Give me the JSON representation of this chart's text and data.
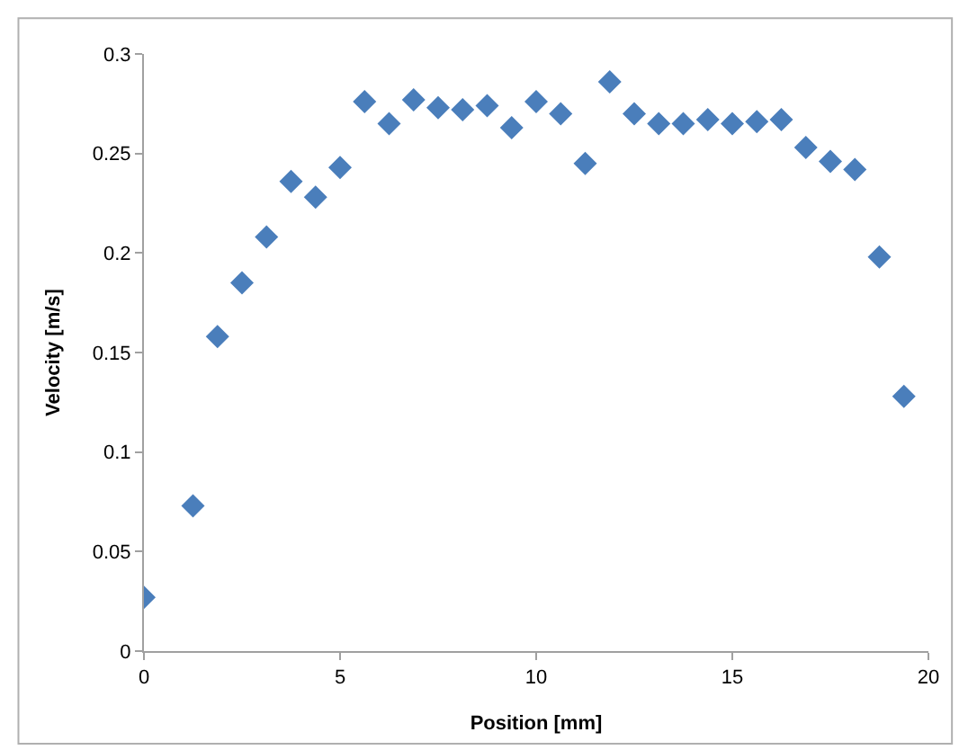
{
  "chart_data": {
    "type": "scatter",
    "xlabel": "Position [mm]",
    "ylabel": "Velocity [m/s]",
    "x": [
      0,
      1.25,
      1.875,
      2.5,
      3.125,
      3.75,
      4.375,
      5,
      5.625,
      6.25,
      6.875,
      7.5,
      8.125,
      8.75,
      9.375,
      10,
      10.625,
      11.25,
      11.875,
      12.5,
      13.125,
      13.75,
      14.375,
      15,
      15.625,
      16.25,
      16.875,
      17.5,
      18.125,
      18.75,
      19.375
    ],
    "series": [
      {
        "color": "#4a7ebb",
        "values": [
          0.027,
          0.073,
          0.158,
          0.185,
          0.208,
          0.236,
          0.228,
          0.243,
          0.276,
          0.265,
          0.277,
          0.273,
          0.272,
          0.274,
          0.263,
          0.276,
          0.27,
          0.245,
          0.286,
          0.27,
          0.265,
          0.265,
          0.267,
          0.265,
          0.266,
          0.267,
          0.253,
          0.246,
          0.242,
          0.198,
          0.128
        ]
      }
    ],
    "xlim": [
      0,
      20
    ],
    "xticks": [
      0,
      5,
      10,
      15,
      20
    ],
    "ylim": [
      0,
      0.3
    ],
    "yticks": [
      0,
      0.05,
      0.1,
      0.15,
      0.2,
      0.25,
      0.3
    ],
    "marker": "diamond"
  }
}
